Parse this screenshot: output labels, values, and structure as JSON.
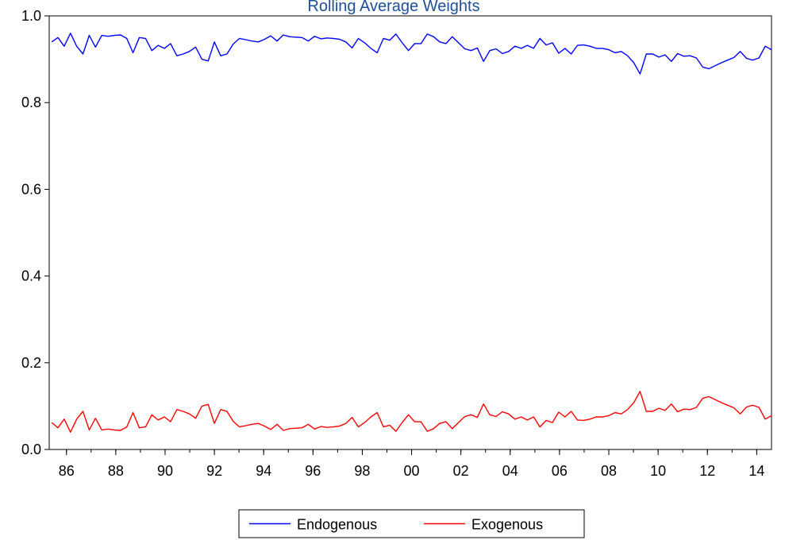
{
  "chart_data": {
    "type": "line",
    "title": "Rolling Average Weights",
    "xlabel": "",
    "ylabel": "",
    "x_tick_labels": [
      "86",
      "88",
      "90",
      "92",
      "94",
      "96",
      "98",
      "00",
      "02",
      "04",
      "06",
      "08",
      "10",
      "12",
      "14"
    ],
    "y_tick_labels": [
      "0.0",
      "0.2",
      "0.4",
      "0.6",
      "0.8",
      "1.0"
    ],
    "ylim": [
      0,
      1
    ],
    "x_range_years": [
      1985.3,
      2014.6
    ],
    "grid": false,
    "legend_position": "bottom-center",
    "series": [
      {
        "name": "Endogenous",
        "color": "#0000ff",
        "values": [
          0.94,
          0.95,
          0.93,
          0.96,
          0.93,
          0.912,
          0.955,
          0.928,
          0.955,
          0.953,
          0.955,
          0.956,
          0.948,
          0.915,
          0.95,
          0.948,
          0.92,
          0.932,
          0.925,
          0.936,
          0.908,
          0.912,
          0.918,
          0.928,
          0.9,
          0.896,
          0.94,
          0.908,
          0.912,
          0.935,
          0.948,
          0.945,
          0.942,
          0.94,
          0.946,
          0.954,
          0.942,
          0.956,
          0.952,
          0.951,
          0.95,
          0.942,
          0.953,
          0.947,
          0.949,
          0.948,
          0.946,
          0.94,
          0.926,
          0.948,
          0.938,
          0.925,
          0.915,
          0.948,
          0.944,
          0.958,
          0.938,
          0.92,
          0.936,
          0.936,
          0.958,
          0.952,
          0.94,
          0.936,
          0.952,
          0.938,
          0.924,
          0.92,
          0.926,
          0.895,
          0.92,
          0.924,
          0.913,
          0.918,
          0.93,
          0.925,
          0.932,
          0.925,
          0.948,
          0.933,
          0.938,
          0.914,
          0.925,
          0.912,
          0.932,
          0.933,
          0.93,
          0.925,
          0.925,
          0.922,
          0.915,
          0.918,
          0.908,
          0.892,
          0.866,
          0.912,
          0.912,
          0.905,
          0.91,
          0.895,
          0.913,
          0.907,
          0.908,
          0.903,
          0.882,
          0.878,
          0.885,
          0.892,
          0.898,
          0.904,
          0.918,
          0.902,
          0.898,
          0.903,
          0.93,
          0.922
        ],
        "x_start": 1985.4,
        "x_end": 2014.6
      },
      {
        "name": "Exogenous",
        "color": "#ff0000",
        "values": [
          0.062,
          0.05,
          0.07,
          0.04,
          0.07,
          0.088,
          0.045,
          0.072,
          0.045,
          0.047,
          0.045,
          0.044,
          0.052,
          0.085,
          0.05,
          0.052,
          0.08,
          0.068,
          0.075,
          0.064,
          0.092,
          0.088,
          0.082,
          0.072,
          0.1,
          0.104,
          0.06,
          0.092,
          0.088,
          0.065,
          0.052,
          0.055,
          0.058,
          0.06,
          0.054,
          0.046,
          0.058,
          0.044,
          0.048,
          0.049,
          0.05,
          0.058,
          0.047,
          0.053,
          0.051,
          0.052,
          0.054,
          0.06,
          0.074,
          0.052,
          0.062,
          0.075,
          0.085,
          0.052,
          0.056,
          0.042,
          0.062,
          0.08,
          0.064,
          0.064,
          0.042,
          0.048,
          0.06,
          0.064,
          0.048,
          0.062,
          0.076,
          0.08,
          0.074,
          0.105,
          0.08,
          0.076,
          0.087,
          0.082,
          0.07,
          0.075,
          0.068,
          0.075,
          0.052,
          0.067,
          0.062,
          0.086,
          0.075,
          0.088,
          0.068,
          0.067,
          0.07,
          0.075,
          0.075,
          0.078,
          0.085,
          0.082,
          0.092,
          0.108,
          0.134,
          0.088,
          0.088,
          0.095,
          0.09,
          0.105,
          0.087,
          0.093,
          0.092,
          0.097,
          0.118,
          0.122,
          0.115,
          0.108,
          0.102,
          0.096,
          0.082,
          0.098,
          0.102,
          0.097,
          0.07,
          0.078
        ],
        "x_start": 1985.4,
        "x_end": 2014.6
      }
    ]
  }
}
